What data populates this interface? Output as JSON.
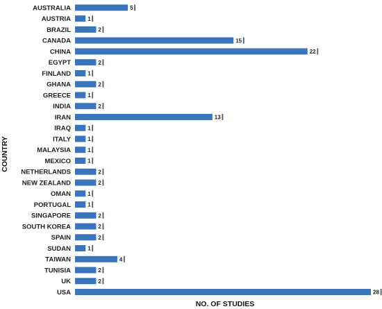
{
  "chart_data": {
    "type": "bar",
    "orientation": "horizontal",
    "categories": [
      "AUSTRALIA",
      "AUSTRIA",
      "BRAZIL",
      "CANADA",
      "CHINA",
      "EGYPT",
      "FINLAND",
      "GHANA",
      "GREECE",
      "INDIA",
      "IRAN",
      "IRAQ",
      "ITALY",
      "MALAYSIA",
      "MEXICO",
      "NETHERLANDS",
      "NEW ZEALAND",
      "OMAN",
      "PORTUGAL",
      "SINGAPORE",
      "SOUTH KOREA",
      "SPAIN",
      "SUDAN",
      "TAIWAN",
      "TUNISIA",
      "UK",
      "USA"
    ],
    "values": [
      5,
      1,
      2,
      15,
      22,
      2,
      1,
      2,
      1,
      2,
      13,
      1,
      1,
      1,
      1,
      2,
      2,
      1,
      1,
      2,
      2,
      2,
      1,
      4,
      2,
      2,
      28
    ],
    "xlabel": "NO. OF STUDIES",
    "ylabel": "COUNTRY",
    "xlim": [
      0,
      28
    ],
    "grid": false,
    "legend": "none",
    "bar_color": "#3a75b9",
    "marker_color": "#4c5d72"
  }
}
